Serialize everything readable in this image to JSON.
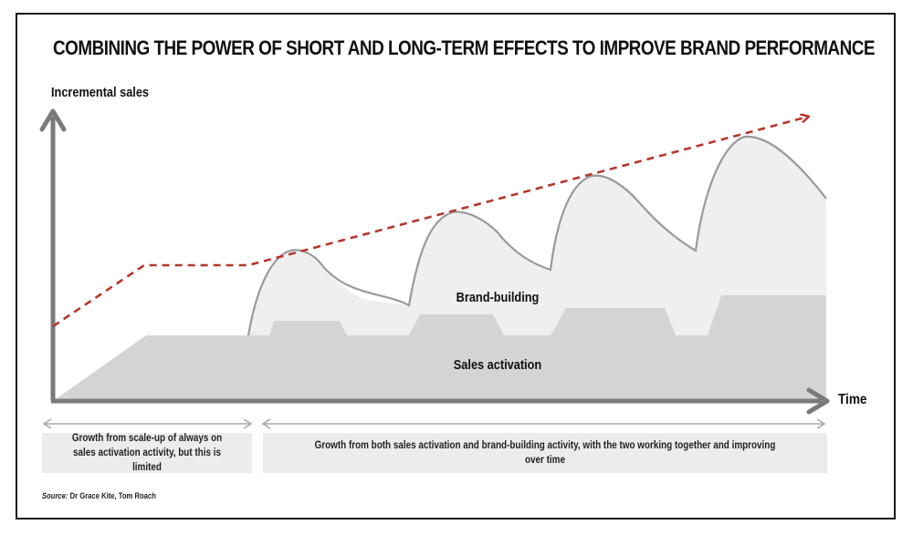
{
  "title": "COMBINING THE POWER OF SHORT AND LONG-TERM EFFECTS TO IMPROVE BRAND PERFORMANCE",
  "y_axis_label": "Incremental sales",
  "x_axis_label": "Time",
  "regions": {
    "brand_building": "Brand-building",
    "sales_activation": "Sales activation"
  },
  "captions": {
    "left": "Growth from scale-up of always on sales activation activity, but this is limited",
    "right": "Growth from both sales  activation and brand-building activity, with the two working together and improving over time"
  },
  "source": {
    "prefix": "Source:",
    "text": "Dr Grace Kite, Tom Roach"
  },
  "colors": {
    "trend_line": "#b5372c",
    "brand_fill": "#efefef",
    "activation_fill": "#d4d4d4",
    "axis": "#7a7a7a",
    "caption_bg": "#ececec"
  }
}
